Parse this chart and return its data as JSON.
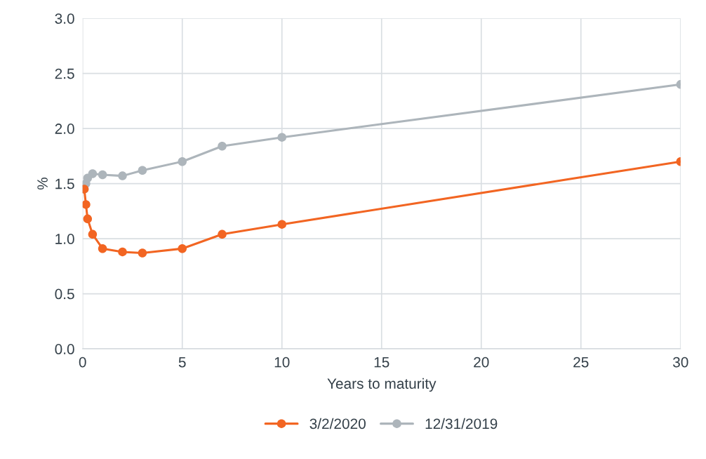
{
  "chart_data": {
    "type": "line",
    "xlabel": "Years to maturity",
    "ylabel": "%",
    "x": [
      0.083,
      0.167,
      0.25,
      0.5,
      1,
      2,
      3,
      5,
      7,
      10,
      30
    ],
    "series": [
      {
        "name": "3/2/2020",
        "color": "#f26522",
        "values": [
          1.45,
          1.31,
          1.18,
          1.04,
          0.91,
          0.88,
          0.87,
          0.91,
          1.04,
          1.13,
          1.7
        ]
      },
      {
        "name": "12/31/2019",
        "color": "#adb5bb",
        "values": [
          1.45,
          1.5,
          1.55,
          1.59,
          1.58,
          1.57,
          1.62,
          1.7,
          1.84,
          1.92,
          2.4
        ]
      }
    ],
    "xlim": [
      0,
      30
    ],
    "xticks": [
      0,
      5,
      10,
      15,
      20,
      25,
      30
    ],
    "ylim": [
      0,
      3.0
    ],
    "yticks": [
      {
        "value": 0,
        "label": "0.0"
      },
      {
        "value": 0.5,
        "label": "0.5"
      },
      {
        "value": 1.0,
        "label": "1.0"
      },
      {
        "value": 1.5,
        "label": "1.5"
      },
      {
        "value": 2.0,
        "label": "2.0"
      },
      {
        "value": 2.5,
        "label": "2.5"
      },
      {
        "value": 3.0,
        "label": "3.0"
      }
    ],
    "grid": true,
    "legend": "bottom",
    "marker": "circle",
    "line_style": "solid"
  }
}
